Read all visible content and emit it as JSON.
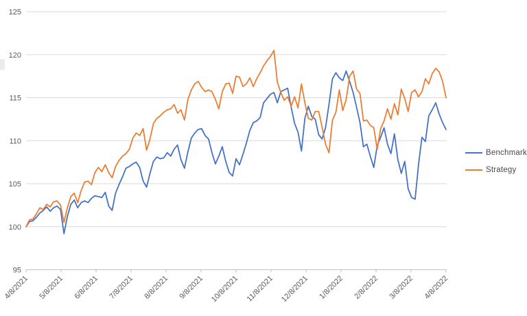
{
  "chart_data": {
    "type": "line",
    "title": "",
    "xlabel": "",
    "ylabel": "",
    "ylim": [
      95,
      125
    ],
    "y_ticks": [
      95,
      100,
      105,
      110,
      115,
      120,
      125
    ],
    "x_tick_labels": [
      "4/8/2021",
      "5/8/2021",
      "6/8/2021",
      "7/8/2021",
      "8/8/2021",
      "9/8/2021",
      "10/8/2021",
      "11/8/2021",
      "12/8/2021",
      "1/8/2022",
      "2/8/2022",
      "3/8/2022",
      "4/8/2022"
    ],
    "grid": "horizontal",
    "legend_position": "right",
    "series": [
      {
        "name": "Benchmark",
        "color": "#4472C4",
        "values": [
          100.0,
          100.6,
          100.7,
          101.1,
          101.6,
          101.9,
          102.3,
          101.8,
          102.2,
          102.4,
          102.0,
          99.2,
          101.2,
          102.6,
          103.1,
          102.2,
          102.8,
          103.0,
          102.8,
          103.3,
          103.6,
          103.5,
          103.4,
          104.0,
          102.4,
          101.9,
          103.9,
          104.9,
          105.8,
          106.8,
          107.0,
          107.3,
          107.5,
          106.9,
          105.3,
          104.6,
          106.2,
          107.6,
          108.1,
          107.9,
          108.0,
          108.6,
          108.2,
          109.0,
          109.5,
          107.8,
          106.8,
          108.7,
          110.3,
          110.9,
          111.3,
          111.4,
          110.6,
          110.2,
          108.6,
          107.3,
          108.2,
          109.3,
          107.6,
          106.3,
          105.9,
          107.9,
          107.2,
          108.4,
          109.7,
          111.2,
          112.1,
          112.3,
          112.7,
          114.4,
          114.9,
          115.4,
          115.6,
          114.4,
          115.7,
          115.9,
          116.1,
          113.9,
          112.0,
          111.0,
          108.8,
          112.6,
          114.0,
          112.8,
          112.5,
          110.7,
          110.2,
          111.5,
          114.2,
          117.2,
          117.9,
          117.3,
          117.0,
          118.1,
          116.9,
          115.6,
          113.9,
          112.1,
          109.3,
          109.6,
          108.2,
          106.9,
          109.4,
          110.4,
          111.5,
          109.6,
          108.5,
          110.8,
          107.8,
          106.2,
          107.6,
          104.4,
          103.4,
          103.2,
          107.2,
          110.4,
          109.9,
          112.9,
          113.6,
          114.4,
          113.1,
          112.1,
          111.3
        ]
      },
      {
        "name": "Strategy",
        "color": "#ED7D31",
        "values": [
          100.0,
          100.8,
          100.9,
          101.5,
          102.2,
          102.0,
          102.6,
          102.3,
          102.9,
          103.0,
          102.5,
          100.5,
          102.2,
          103.5,
          103.9,
          102.8,
          104.2,
          105.2,
          105.3,
          104.9,
          106.3,
          106.9,
          106.4,
          107.2,
          106.3,
          105.7,
          107.0,
          107.7,
          108.2,
          108.5,
          109.0,
          110.3,
          110.9,
          110.6,
          111.4,
          108.9,
          110.2,
          112.0,
          112.6,
          112.9,
          113.3,
          113.6,
          113.7,
          114.2,
          113.2,
          113.6,
          112.4,
          114.8,
          115.9,
          116.6,
          116.9,
          116.2,
          115.7,
          115.9,
          115.7,
          114.8,
          113.7,
          115.7,
          116.6,
          116.7,
          115.5,
          117.5,
          117.4,
          116.3,
          116.6,
          117.3,
          116.3,
          117.2,
          117.9,
          118.7,
          119.3,
          119.8,
          120.5,
          116.8,
          115.6,
          114.7,
          115.1,
          114.0,
          115.1,
          113.8,
          116.6,
          114.4,
          112.6,
          112.4,
          113.4,
          113.4,
          111.6,
          109.6,
          108.6,
          112.4,
          113.3,
          115.9,
          113.5,
          114.8,
          117.5,
          118.1,
          116.0,
          115.5,
          112.3,
          112.4,
          111.8,
          111.5,
          109.0,
          111.4,
          112.3,
          113.7,
          112.5,
          114.3,
          113.0,
          116.0,
          114.9,
          113.4,
          115.6,
          115.9,
          115.1,
          115.7,
          117.2,
          116.6,
          117.8,
          118.4,
          118.0,
          116.9,
          115.0
        ]
      }
    ]
  },
  "style": {
    "gridline_color": "#D9D9D9",
    "axis_line_color": "#BFBFBF",
    "axis_label_color": "#595959",
    "legend_text_color": "#474747",
    "background": "#FFFFFF"
  }
}
